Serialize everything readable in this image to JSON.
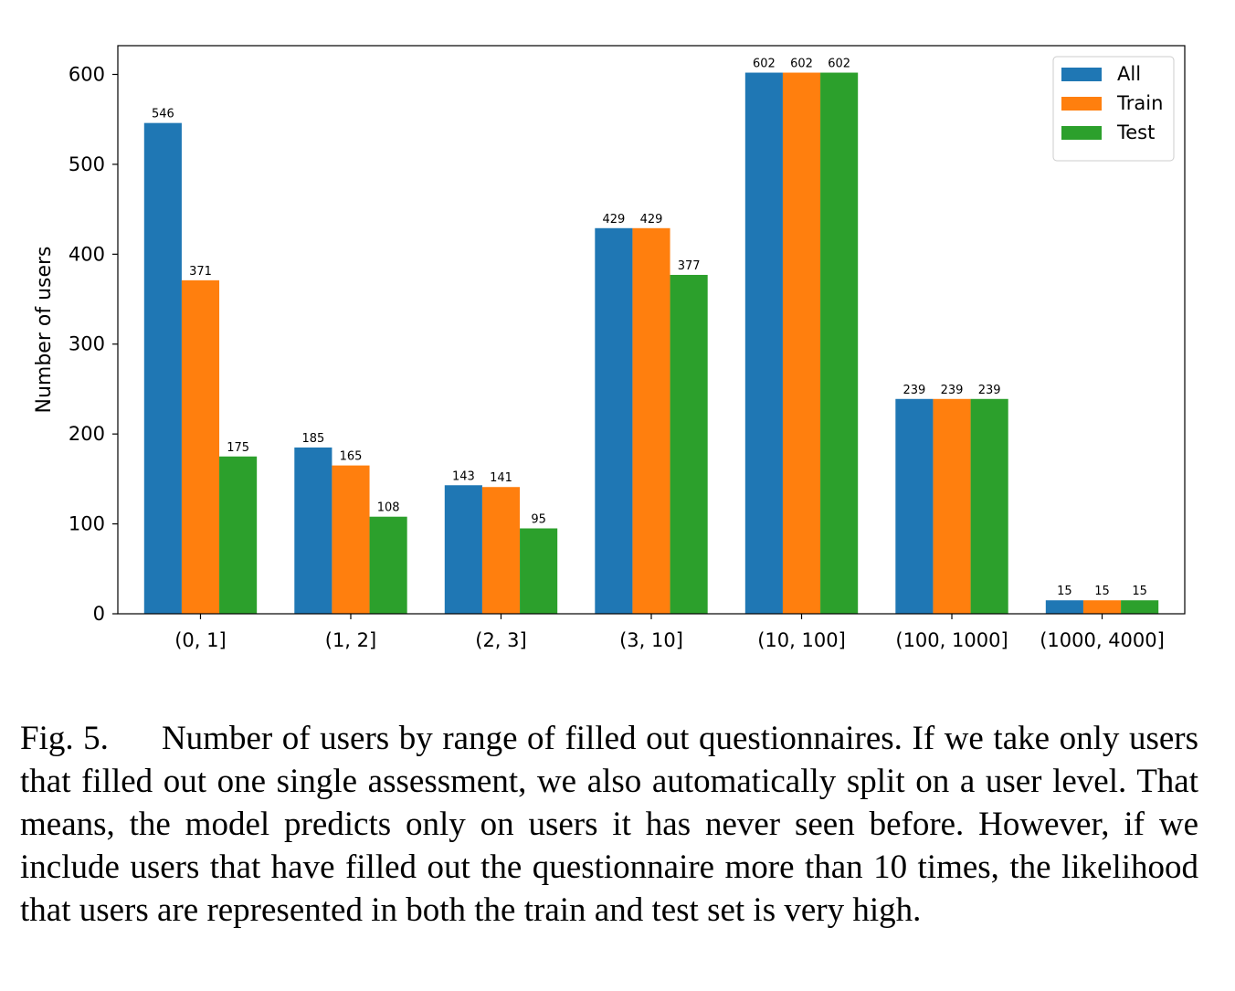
{
  "chart_data": {
    "type": "bar",
    "title": "",
    "xlabel": "",
    "ylabel": "Number of users",
    "ylim": [
      0,
      632
    ],
    "yticks": [
      0,
      100,
      200,
      300,
      400,
      500,
      600
    ],
    "categories": [
      "(0, 1]",
      "(1, 2]",
      "(2, 3]",
      "(3, 10]",
      "(10, 100]",
      "(100, 1000]",
      "(1000, 4000]"
    ],
    "series": [
      {
        "name": "All",
        "color": "#1f77b4",
        "values": [
          546,
          185,
          143,
          429,
          602,
          239,
          15
        ]
      },
      {
        "name": "Train",
        "color": "#ff7f0e",
        "values": [
          371,
          165,
          141,
          429,
          602,
          239,
          15
        ]
      },
      {
        "name": "Test",
        "color": "#2ca02c",
        "values": [
          175,
          108,
          95,
          377,
          602,
          239,
          15
        ]
      }
    ],
    "grid": false,
    "legend_position": "top-right"
  },
  "caption": {
    "label": "Fig. 5.",
    "text": "Number of users by range of filled out questionnaires. If we take only users that filled out one single assessment, we also automatically split on a user level. That means, the model predicts only on users it has never seen before. However, if we include users that have filled out the questionnaire more than 10 times, the likelihood that users are represented in both the train and test set is very high."
  }
}
